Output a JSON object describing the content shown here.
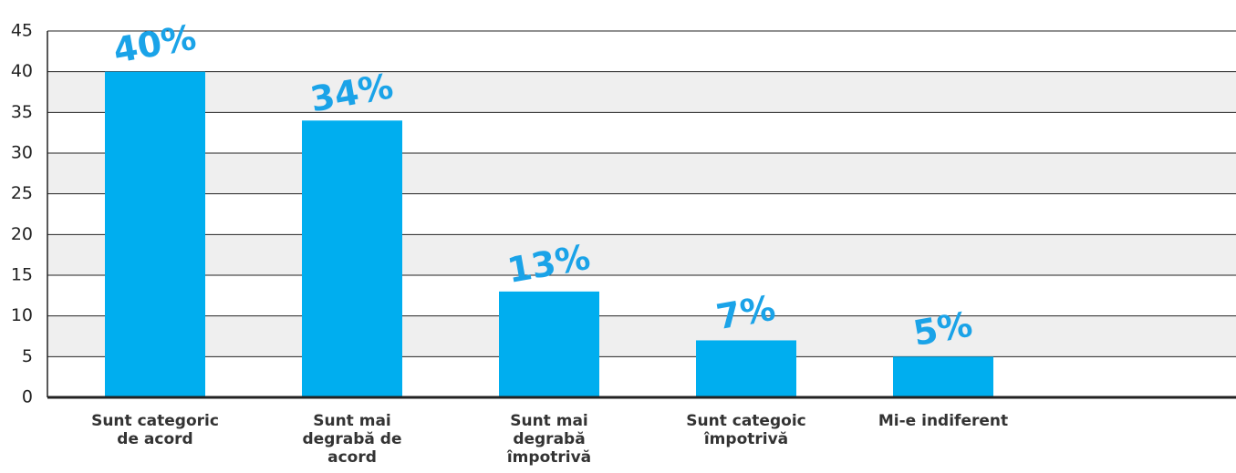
{
  "chart_data": {
    "type": "bar",
    "categories": [
      "Sunt categoric de acord",
      "Sunt mai degrabă de acord",
      "Sunt mai degrabă împotrivă",
      "Sunt categoic împotrivă",
      "Mi-e indiferent"
    ],
    "values": [
      40,
      34,
      13,
      7,
      5
    ],
    "value_labels": [
      "40%",
      "34%",
      "13%",
      "7%",
      "5%"
    ],
    "color": "#00aeef",
    "ylim": [
      0,
      45
    ],
    "yticks": [
      0,
      5,
      10,
      15,
      20,
      25,
      30,
      35,
      40,
      45
    ],
    "grid": true
  }
}
